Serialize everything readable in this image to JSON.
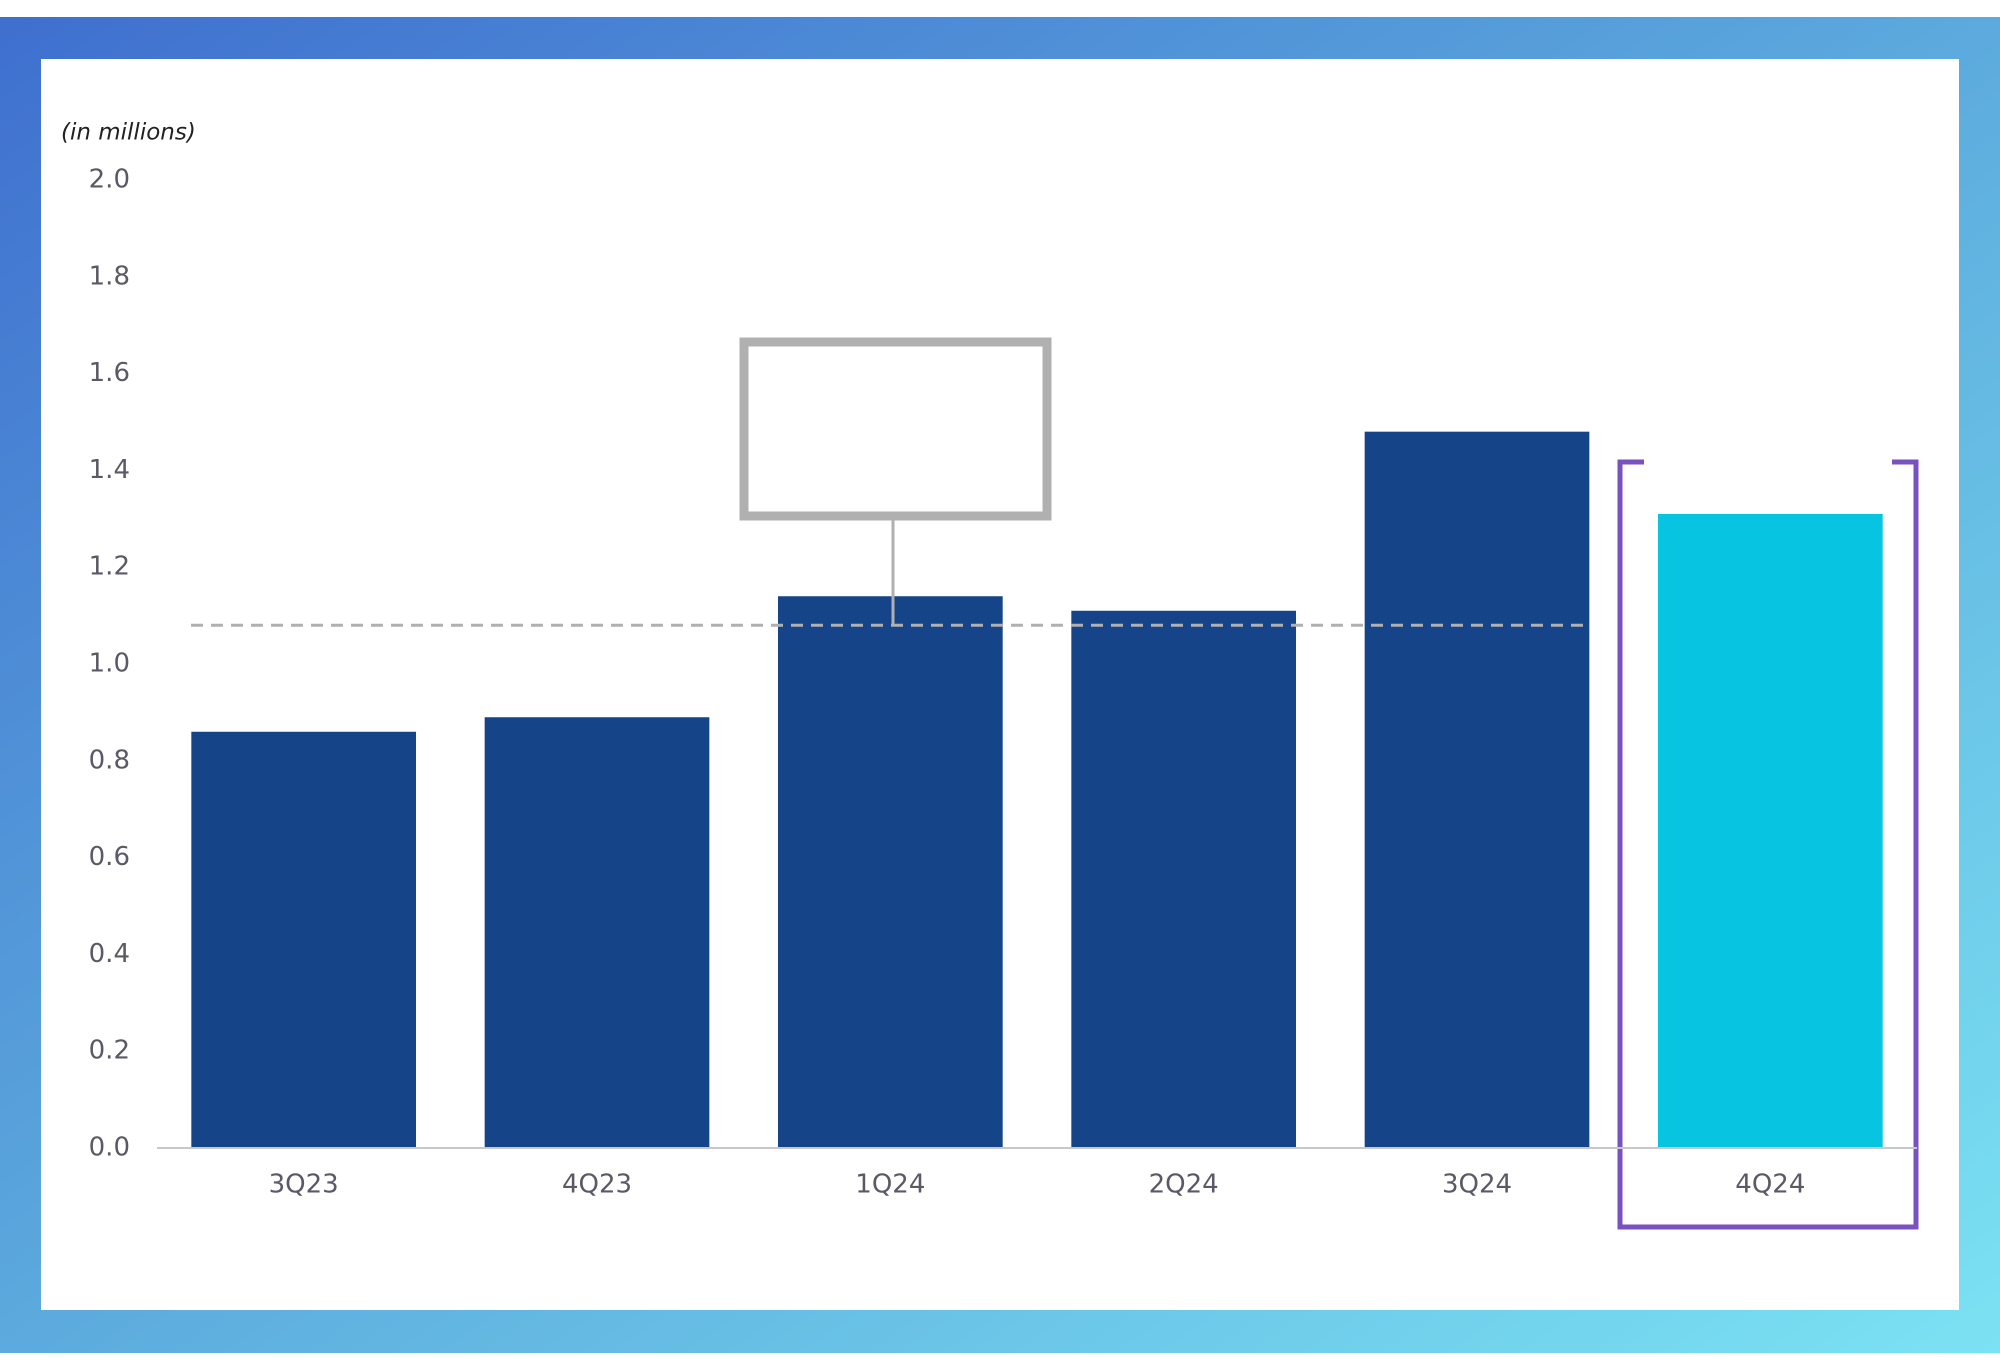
{
  "chart_data": {
    "type": "bar",
    "y_label": "(in millions)",
    "categories": [
      "3Q23",
      "4Q23",
      "1Q24",
      "2Q24",
      "3Q24",
      "4Q24"
    ],
    "values": [
      0.86,
      0.89,
      1.14,
      1.11,
      1.48,
      1.31
    ],
    "colors": [
      "#164488",
      "#164488",
      "#164488",
      "#164488",
      "#164488",
      "#07c4e0"
    ],
    "reference_line": 1.08,
    "ylim": [
      0,
      2
    ],
    "yticks": [
      {
        "value": 0,
        "label": "0.0"
      },
      0.2,
      0.4,
      0.6,
      0.8,
      {
        "value": 1,
        "label": "1.0"
      },
      1.2,
      1.4,
      1.6,
      1.8,
      {
        "value": 2,
        "label": "2.0"
      }
    ]
  }
}
